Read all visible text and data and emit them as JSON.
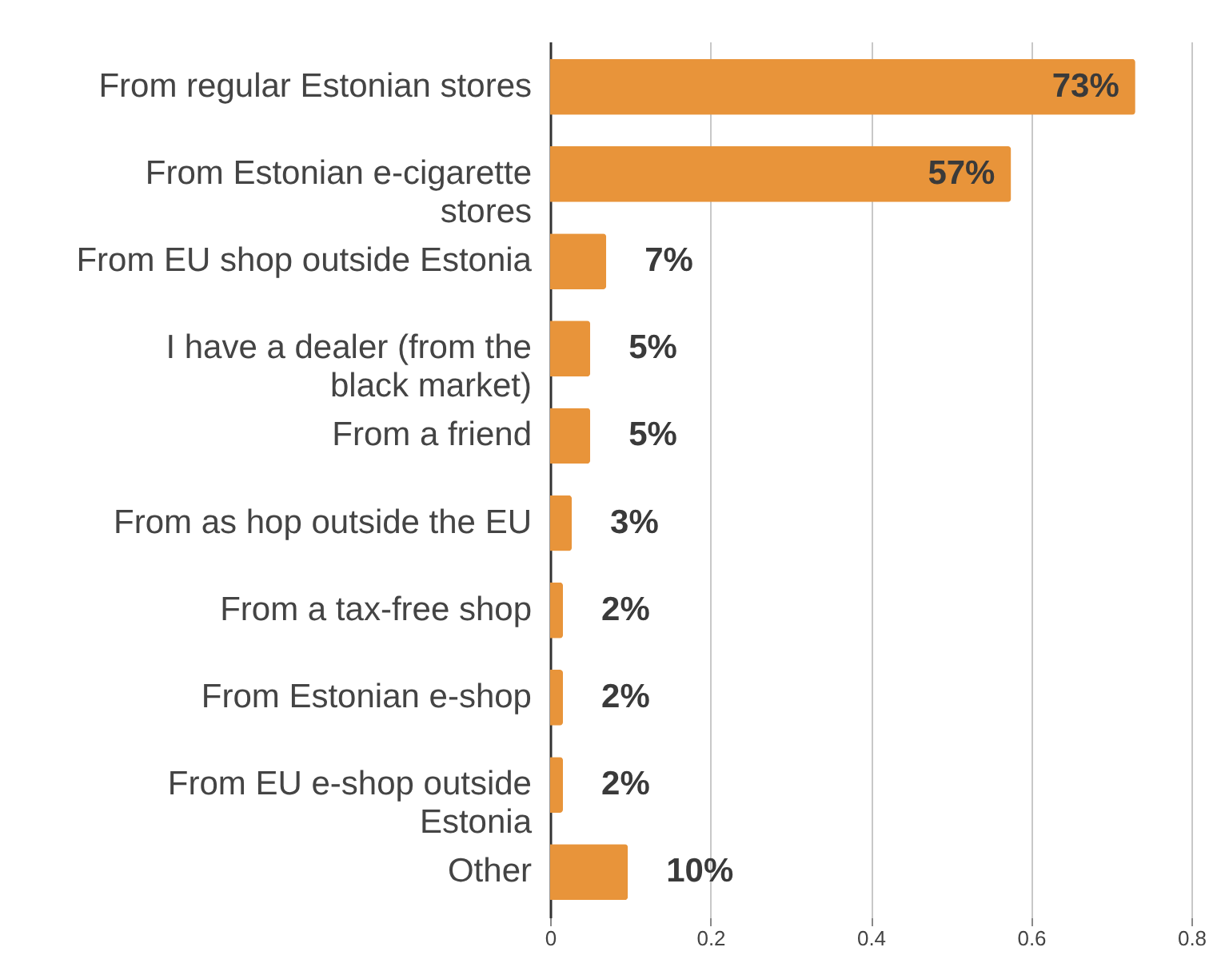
{
  "chart_data": {
    "type": "bar",
    "orientation": "horizontal",
    "categories": [
      "From regular Estonian stores",
      "From Estonian e-cigarette stores",
      "From EU shop outside Estonia",
      "I have a dealer (from the black market)",
      "From a friend",
      "From as hop outside the EU",
      "From a tax-free shop",
      "From Estonian e-shop",
      "From EU e-shop outside Estonia",
      "Other"
    ],
    "values": [
      0.73,
      0.575,
      0.07,
      0.05,
      0.05,
      0.027,
      0.016,
      0.016,
      0.016,
      0.097
    ],
    "value_labels": [
      "73%",
      "57%",
      "7%",
      "5%",
      "5%",
      "3%",
      "2%",
      "2%",
      "2%",
      "10%"
    ],
    "color": "#e8943a",
    "xlim": [
      0,
      0.8
    ],
    "xticks": [
      0,
      0.2,
      0.4,
      0.6,
      0.8
    ],
    "grid": "x"
  }
}
